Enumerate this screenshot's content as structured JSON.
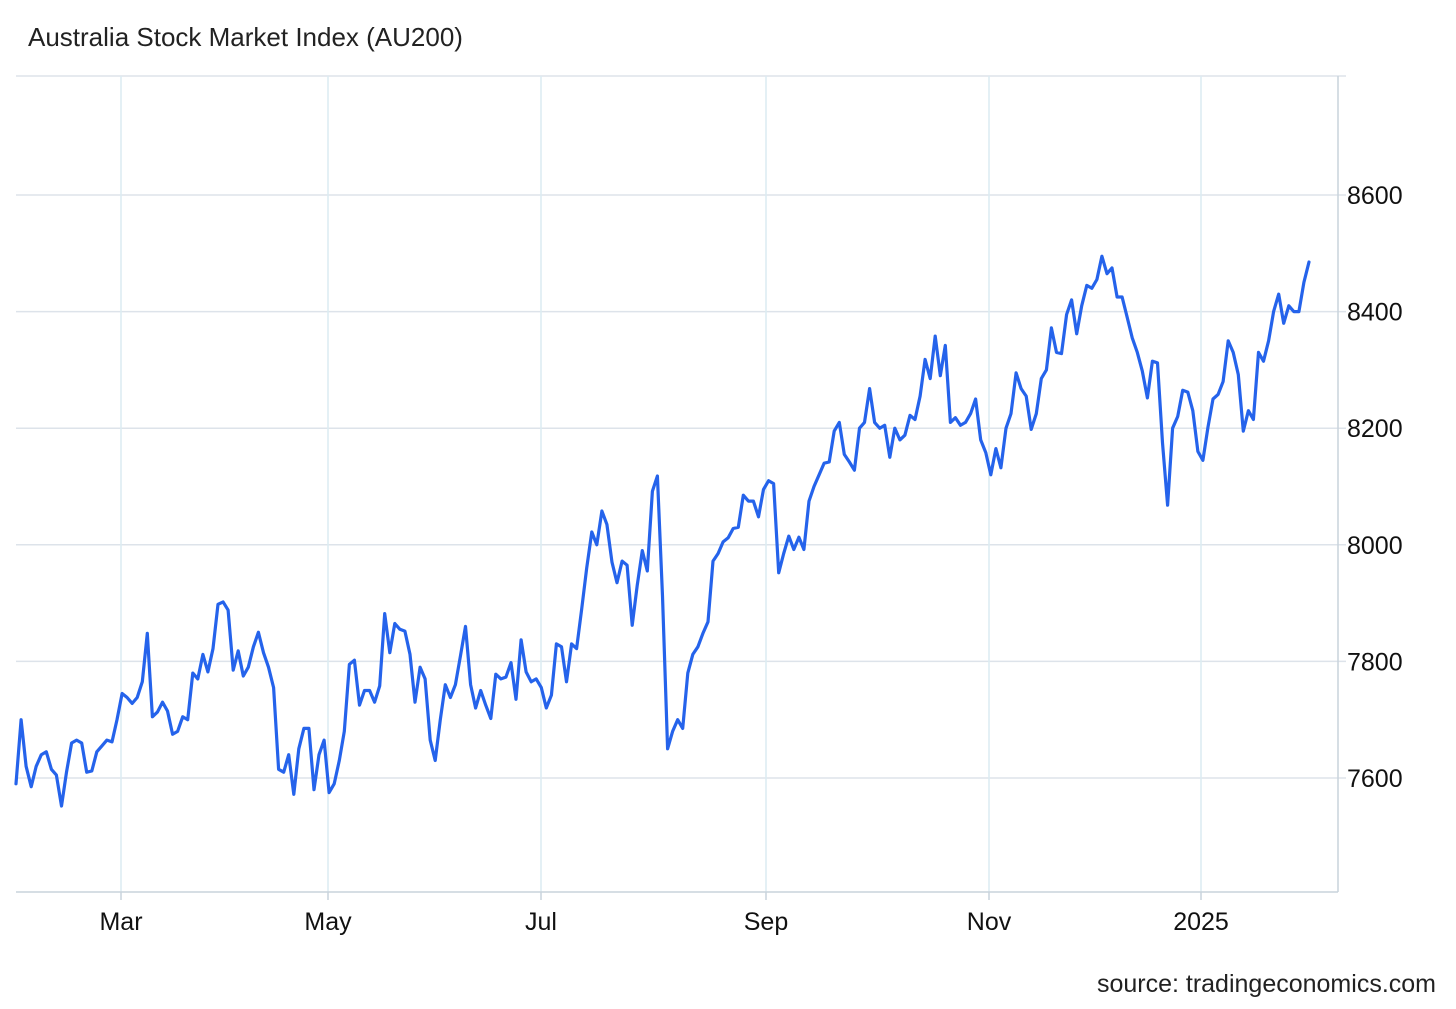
{
  "chart_data": {
    "type": "line",
    "title": "Australia Stock Market Index (AU200)",
    "source": "source: tradingeconomics.com",
    "xlabel": "",
    "ylabel": "",
    "x_ticks": [
      "Mar",
      "May",
      "Jul",
      "Sep",
      "Nov",
      "2025"
    ],
    "y_ticks": [
      7600,
      7800,
      8000,
      8200,
      8400,
      8600
    ],
    "ylim": [
      7400,
      8800
    ],
    "grid": true,
    "y_axis_position": "right",
    "series_color": "#2563eb",
    "series": [
      {
        "values": [
          7590,
          7700,
          7620,
          7585,
          7620,
          7640,
          7645,
          7615,
          7605,
          7552,
          7610,
          7660,
          7665,
          7660,
          7610,
          7612,
          7645,
          7655,
          7665,
          7662,
          7700,
          7745,
          7738,
          7728,
          7738,
          7765,
          7848,
          7705,
          7713,
          7730,
          7715,
          7675,
          7680,
          7705,
          7700,
          7780,
          7770,
          7812,
          7782,
          7822,
          7898,
          7902,
          7888,
          7785,
          7818,
          7775,
          7790,
          7825,
          7850,
          7815,
          7790,
          7755,
          7615,
          7610,
          7640,
          7572,
          7650,
          7685,
          7685,
          7580,
          7640,
          7665,
          7575,
          7590,
          7630,
          7680,
          7795,
          7802,
          7725,
          7750,
          7750,
          7730,
          7758,
          7882,
          7815,
          7865,
          7855,
          7852,
          7812,
          7730,
          7790,
          7770,
          7665,
          7630,
          7700,
          7760,
          7738,
          7760,
          7810,
          7860,
          7760,
          7720,
          7750,
          7725,
          7702,
          7778,
          7770,
          7773,
          7798,
          7735,
          7837,
          7782,
          7765,
          7770,
          7755,
          7720,
          7742,
          7830,
          7825,
          7765,
          7830,
          7822,
          7890,
          7960,
          8022,
          8000,
          8058,
          8035,
          7970,
          7935,
          7972,
          7965,
          7862,
          7930,
          7990,
          7955,
          8092,
          8118,
          7912,
          7650,
          7680,
          7700,
          7685,
          7780,
          7812,
          7825,
          7848,
          7868,
          7972,
          7985,
          8005,
          8012,
          8028,
          8030,
          8085,
          8075,
          8075,
          8048,
          8095,
          8110,
          8105,
          7952,
          7985,
          8015,
          7992,
          8013,
          7992,
          8075,
          8100,
          8120,
          8140,
          8142,
          8195,
          8210,
          8155,
          8142,
          8128,
          8200,
          8210,
          8268,
          8210,
          8200,
          8205,
          8150,
          8200,
          8180,
          8188,
          8222,
          8215,
          8255,
          8318,
          8285,
          8358,
          8290,
          8342,
          8210,
          8218,
          8205,
          8210,
          8225,
          8250,
          8180,
          8158,
          8120,
          8165,
          8132,
          8200,
          8225,
          8295,
          8268,
          8255,
          8198,
          8225,
          8285,
          8300,
          8372,
          8330,
          8328,
          8395,
          8420,
          8362,
          8410,
          8445,
          8440,
          8455,
          8495,
          8465,
          8475,
          8425,
          8425,
          8390,
          8355,
          8330,
          8298,
          8252,
          8315,
          8312,
          8175,
          8068,
          8200,
          8220,
          8265,
          8262,
          8230,
          8160,
          8145,
          8202,
          8250,
          8258,
          8280,
          8350,
          8330,
          8292,
          8195,
          8230,
          8215,
          8330,
          8315,
          8350,
          8400,
          8430,
          8380,
          8410,
          8400,
          8400,
          8450,
          8485
        ]
      }
    ]
  }
}
